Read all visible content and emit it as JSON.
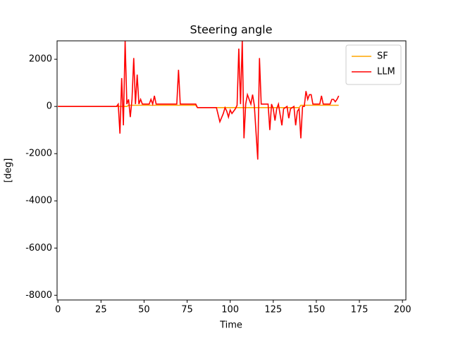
{
  "chart_data": {
    "type": "line",
    "title": "Steering angle",
    "x_label": "Time",
    "y_label": "[deg]",
    "xlim": [
      -0.5,
      202
    ],
    "xticks": [
      0,
      25,
      50,
      75,
      100,
      125,
      150,
      175,
      200
    ],
    "ylim": [
      -8200,
      2780
    ],
    "yticks": [
      -8000,
      -6000,
      -4000,
      -2000,
      0,
      2000
    ],
    "legend": "upper right",
    "series": [
      {
        "name": "SF",
        "color": "#ffa500",
        "x": [
          0,
          40,
          41,
          80,
          81,
          140,
          141,
          163
        ],
        "values": [
          0,
          0,
          50,
          50,
          -50,
          -50,
          50,
          50
        ]
      },
      {
        "name": "LLM",
        "color": "#ff0000",
        "x": [
          0,
          34,
          35,
          36,
          37,
          38,
          39,
          40,
          41,
          42,
          43,
          44,
          45,
          46,
          47,
          48,
          49,
          53,
          54,
          55,
          56,
          57,
          60,
          69,
          70,
          71,
          80,
          81,
          92,
          94,
          96,
          97,
          98,
          99,
          100,
          101,
          103,
          104,
          105,
          106,
          107,
          108,
          109,
          110,
          112,
          113,
          114,
          116,
          117,
          118,
          122,
          123,
          124,
          125,
          126,
          127,
          128,
          130,
          131,
          133,
          134,
          135,
          137,
          138,
          139,
          140,
          141,
          142,
          143,
          144,
          145,
          146,
          147,
          148,
          150,
          152,
          153,
          154,
          158,
          159,
          160,
          161,
          162,
          163
        ],
        "values": [
          0,
          0,
          100,
          -1150,
          1200,
          -800,
          2780,
          100,
          300,
          -450,
          300,
          2050,
          100,
          1350,
          100,
          300,
          100,
          100,
          300,
          100,
          450,
          100,
          100,
          100,
          1550,
          100,
          100,
          -50,
          -50,
          -650,
          -300,
          -50,
          -200,
          -450,
          -150,
          -300,
          -100,
          50,
          2450,
          100,
          2780,
          -1350,
          100,
          500,
          100,
          500,
          50,
          -2250,
          2050,
          100,
          100,
          -1000,
          100,
          -100,
          -600,
          -100,
          100,
          -800,
          -100,
          0,
          -500,
          -100,
          0,
          -800,
          -200,
          -100,
          -1350,
          0,
          0,
          650,
          300,
          500,
          500,
          100,
          100,
          100,
          450,
          100,
          100,
          300,
          300,
          200,
          300,
          450
        ]
      }
    ]
  }
}
